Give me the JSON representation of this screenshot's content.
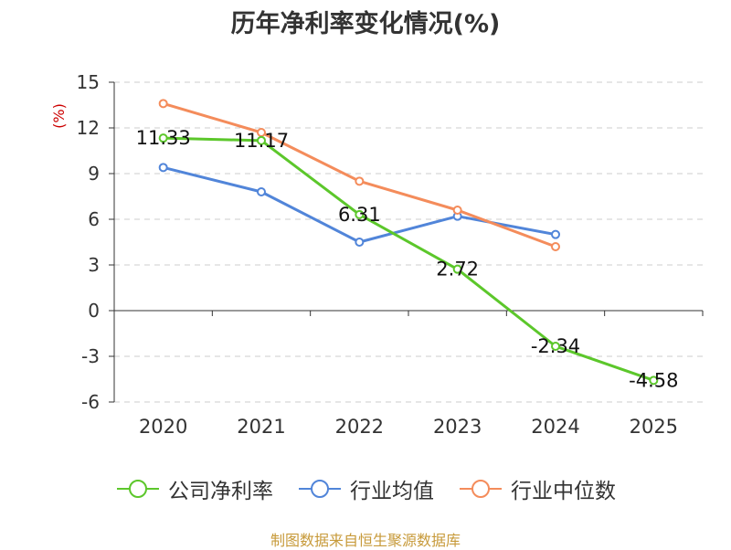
{
  "chart_data": {
    "type": "line",
    "title": "历年净利率变化情况(%)",
    "ylabel": "(%)",
    "xlabel": "",
    "categories": [
      "2020",
      "2021",
      "2022",
      "2023",
      "2024",
      "2025"
    ],
    "yticks": [
      "15",
      "12",
      "9",
      "6",
      "3",
      "0",
      "-3",
      "-6"
    ],
    "ylim": [
      -6,
      15
    ],
    "grid": true,
    "legend_position": "bottom",
    "series": [
      {
        "name": "公司净利率",
        "color": "#5cc72b",
        "values": [
          11.33,
          11.17,
          6.31,
          2.72,
          -2.34,
          -4.58
        ],
        "labels": [
          "11.33",
          "11.17",
          "6.31",
          "2.72",
          "-2.34",
          "-4.58"
        ]
      },
      {
        "name": "行业均值",
        "color": "#5185d9",
        "values": [
          9.4,
          7.8,
          4.5,
          6.2,
          5.0,
          null
        ]
      },
      {
        "name": "行业中位数",
        "color": "#f48c5b",
        "values": [
          13.6,
          11.7,
          8.5,
          6.6,
          4.2,
          null
        ]
      }
    ]
  },
  "source_text": "制图数据来自恒生聚源数据库"
}
